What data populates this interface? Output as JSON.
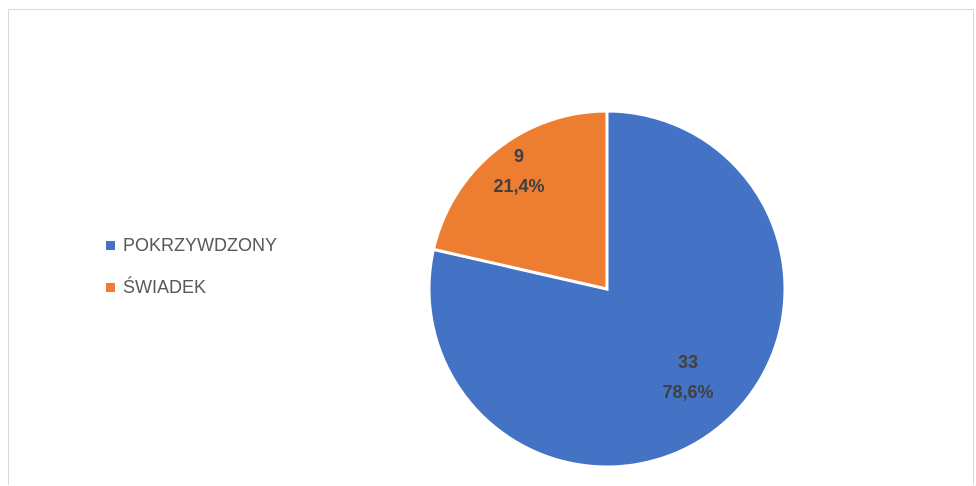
{
  "chart_data": {
    "type": "pie",
    "categories": [
      "POKRZYWDZONY",
      "ŚWIADEK"
    ],
    "values": [
      33,
      9
    ],
    "percent_labels": [
      "78,6%",
      "21,4%"
    ],
    "colors": [
      "#4472C4",
      "#ED7D31"
    ],
    "legend_position": "left",
    "title": ""
  },
  "legend": {
    "items": [
      {
        "label": "POKRZYWDZONY",
        "color": "#4472C4"
      },
      {
        "label": "ŚWIADEK",
        "color": "#ED7D31"
      }
    ]
  }
}
